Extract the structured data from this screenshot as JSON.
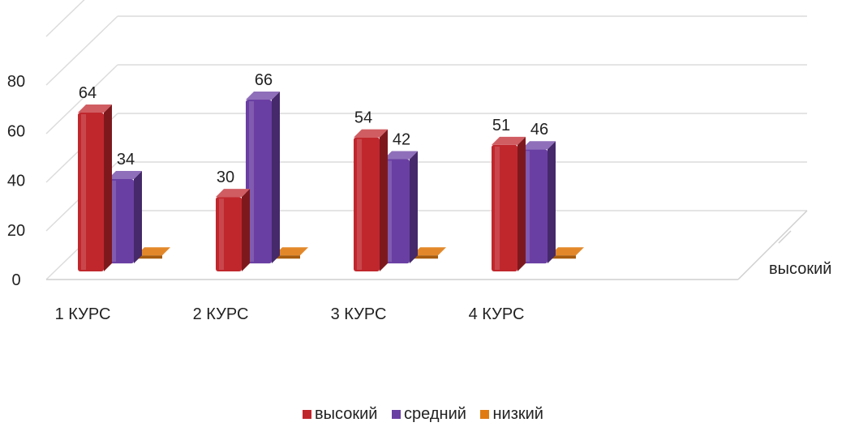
{
  "chart_data": {
    "type": "bar",
    "title": "",
    "categories": [
      "1 КУРС",
      "2 КУРС",
      "3 КУРС",
      "4 КУРС"
    ],
    "series": [
      {
        "name": "высокий",
        "values": [
          64,
          30,
          54,
          51
        ],
        "color": "#c0272d",
        "labels": [
          "64",
          "30",
          "54",
          "51"
        ]
      },
      {
        "name": "средний",
        "values": [
          34,
          66,
          42,
          46
        ],
        "color": "#6a3fa3",
        "labels": [
          "34",
          "66",
          "42",
          "46"
        ]
      },
      {
        "name": "низкий",
        "values": [
          2,
          2,
          2,
          2
        ],
        "color": "#e07b12",
        "labels": [
          "",
          "",
          "",
          ""
        ]
      }
    ],
    "y_ticks": [
      "0",
      "20",
      "40",
      "60",
      "80"
    ],
    "ylim": [
      0,
      80
    ],
    "depth_axis_label": "высокий",
    "grid": true,
    "legend_position": "bottom"
  }
}
